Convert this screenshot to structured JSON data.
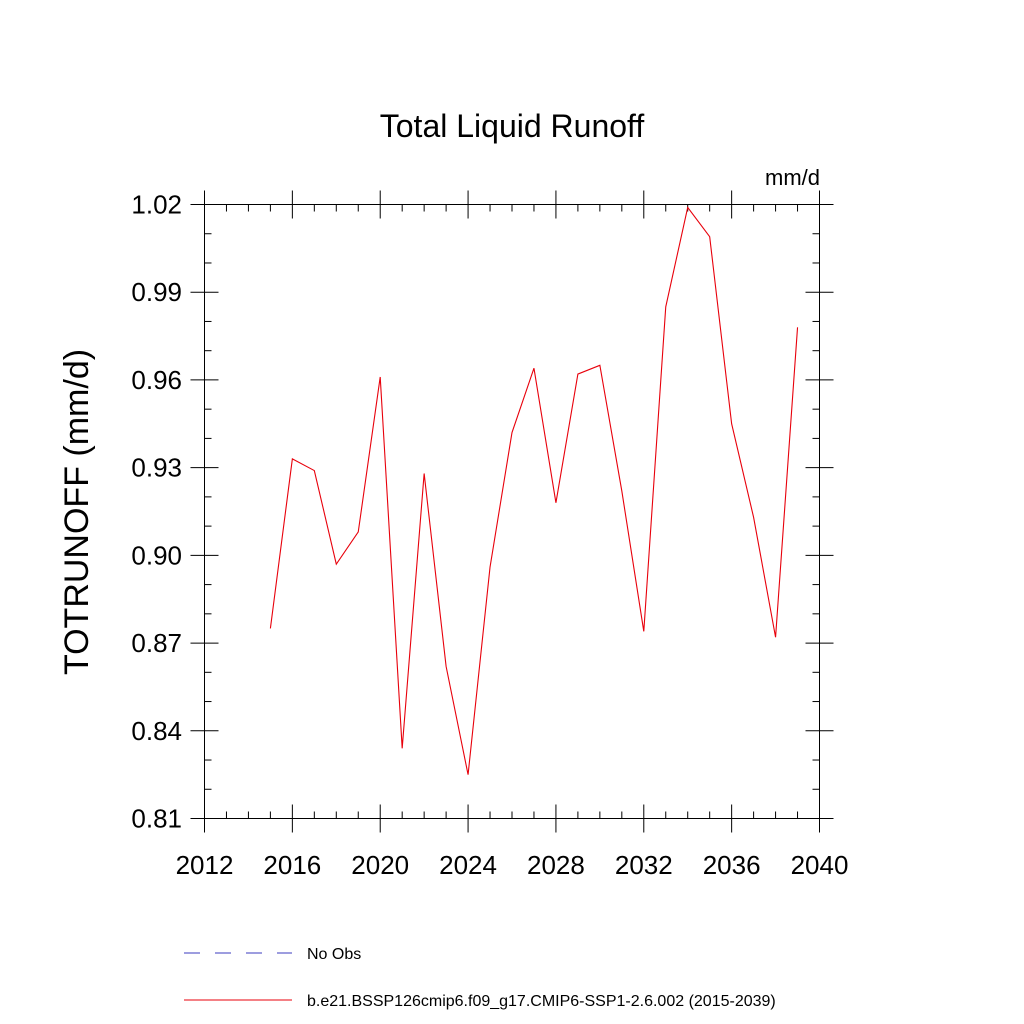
{
  "chart_data": {
    "type": "line",
    "title": "Total Liquid Runoff",
    "units_label": "mm/d",
    "ylabel": "TOTRUNOFF  (mm/d)",
    "xlabel": "",
    "xlim": [
      2012,
      2040
    ],
    "ylim": [
      0.81,
      1.02
    ],
    "x_ticks": [
      "2012",
      "2016",
      "2020",
      "2024",
      "2028",
      "2032",
      "2036",
      "2040"
    ],
    "y_ticks": [
      "0.81",
      "0.84",
      "0.87",
      "0.90",
      "0.93",
      "0.96",
      "0.99",
      "1.02"
    ],
    "grid": false,
    "legend_position": "bottom",
    "x": [
      2015,
      2016,
      2017,
      2018,
      2019,
      2020,
      2021,
      2022,
      2023,
      2024,
      2025,
      2026,
      2027,
      2028,
      2029,
      2030,
      2031,
      2032,
      2033,
      2034,
      2035,
      2036,
      2037,
      2038,
      2039
    ],
    "series": [
      {
        "name": "b.e21.BSSP126cmip6.f09_g17.CMIP6-SSP1-2.6.002 (2015-2039)",
        "color": "#e8000b",
        "style": "solid",
        "values": [
          0.875,
          0.933,
          0.929,
          0.897,
          0.908,
          0.961,
          0.834,
          0.928,
          0.862,
          0.825,
          0.896,
          0.942,
          0.964,
          0.918,
          0.962,
          0.965,
          0.922,
          0.874,
          0.985,
          1.019,
          1.009,
          0.945,
          0.913,
          0.872,
          0.978
        ]
      }
    ],
    "legend": [
      {
        "label": "No Obs",
        "color": "#3b3bbf",
        "style": "dashed"
      },
      {
        "label": "b.e21.BSSP126cmip6.f09_g17.CMIP6-SSP1-2.6.002 (2015-2039)",
        "color": "#e8000b",
        "style": "solid"
      }
    ]
  }
}
